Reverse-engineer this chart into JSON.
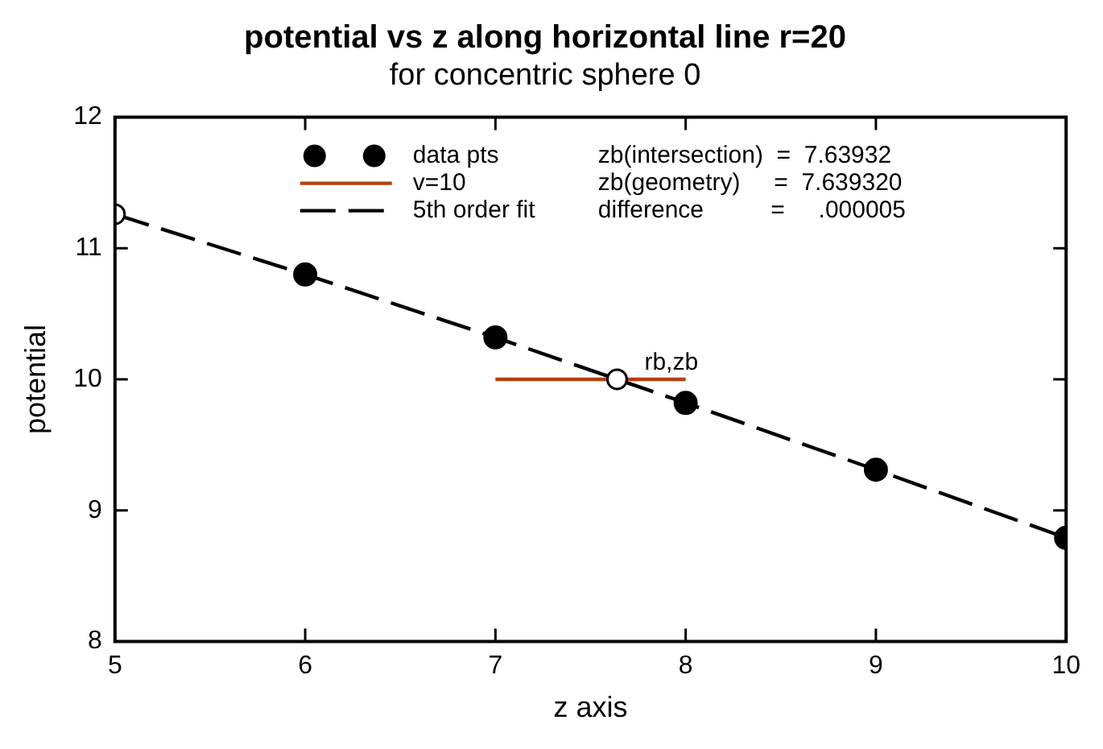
{
  "chart_data": {
    "type": "scatter",
    "title": "potential vs z along horizontal line r=20",
    "subtitle": "for concentric sphere 0",
    "xlabel": "z axis",
    "ylabel": "potential",
    "xlim": [
      5,
      10
    ],
    "xticks": [
      5,
      6,
      7,
      8,
      9,
      10
    ],
    "ylim": [
      8,
      12
    ],
    "yticks": [
      8,
      9,
      10,
      11,
      12
    ],
    "grid": false,
    "legend": "top left",
    "series": [
      {
        "name": "data pts",
        "type": "scatter",
        "color": "#000000",
        "marker": "circle",
        "x": [
          6,
          7,
          8,
          9,
          10
        ],
        "values": [
          10.8,
          10.32,
          9.82,
          9.31,
          8.79
        ]
      },
      {
        "name": "v=10",
        "type": "line",
        "color": "#b5400f",
        "marker": "none",
        "line_style": "solid",
        "x": [
          7,
          8
        ],
        "values": [
          10,
          10
        ]
      },
      {
        "name": "5th order fit",
        "type": "line",
        "color": "#000000",
        "marker": "none",
        "line_style": "dashed",
        "x": [
          5,
          6,
          7,
          7.63932,
          8,
          9,
          10
        ],
        "values": [
          11.26,
          10.8,
          10.32,
          10,
          9.82,
          9.31,
          8.79
        ]
      },
      {
        "type": "scatter",
        "color": "#000000",
        "marker": "circle",
        "x": [
          5,
          7.63932
        ],
        "values": [
          11.26,
          10
        ]
      }
    ],
    "annotations": [
      {
        "text": "rb,zb",
        "x": 7.63932,
        "y": 10
      },
      "zb(intersection)  =  7.63932",
      "zb(geometry)     =  7.639320",
      "difference          =     .000005"
    ]
  }
}
